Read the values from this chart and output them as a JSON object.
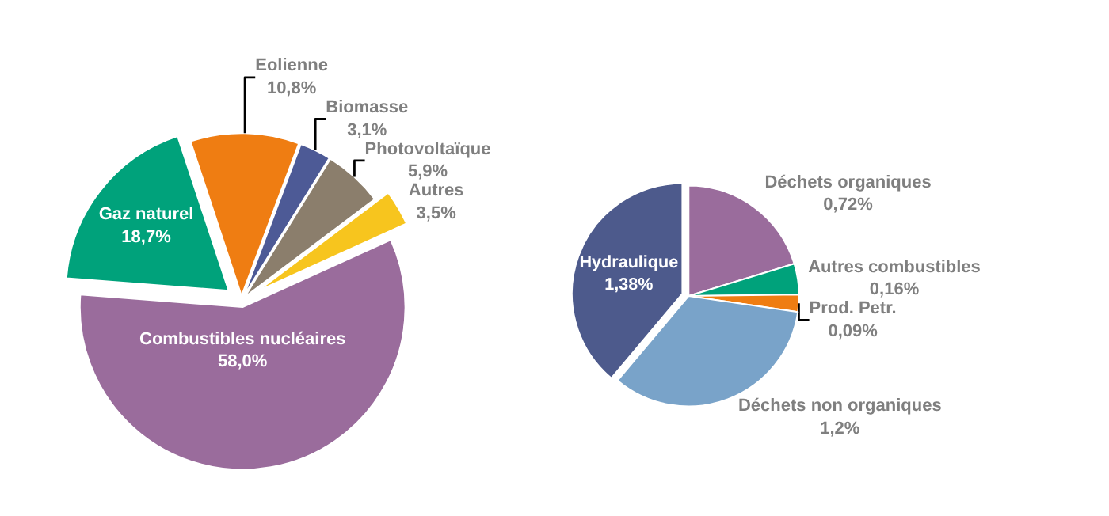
{
  "chart_data": [
    {
      "type": "pie",
      "categories": [
        "Autres",
        "Photovoltaïque",
        "Biomasse",
        "Eolienne",
        "Gaz naturel",
        "Combustibles nucléaires"
      ],
      "values": [
        3.5,
        5.9,
        3.1,
        10.8,
        18.7,
        58.0
      ],
      "colors": [
        "#f7c51e",
        "#8b7e6c",
        "#4d5a96",
        "#ef7d12",
        "#00a27b",
        "#9a6c9c"
      ],
      "value_labels": [
        "3,5%",
        "5,9%",
        "3,1%",
        "10,8%",
        "18,7%",
        "58,0%"
      ]
    },
    {
      "type": "pie",
      "categories": [
        "Déchets organiques",
        "Autres combustibles",
        "Prod. Petr.",
        "Déchets non organiques",
        "Hydraulique"
      ],
      "values": [
        0.72,
        0.16,
        0.09,
        1.2,
        1.38
      ],
      "colors": [
        "#9a6c9c",
        "#00a27b",
        "#ef7d12",
        "#79a3c9",
        "#4d5a8c"
      ],
      "value_labels": [
        "0,72%",
        "0,16%",
        "0,09%",
        "1,2%",
        "1,38%"
      ]
    }
  ]
}
